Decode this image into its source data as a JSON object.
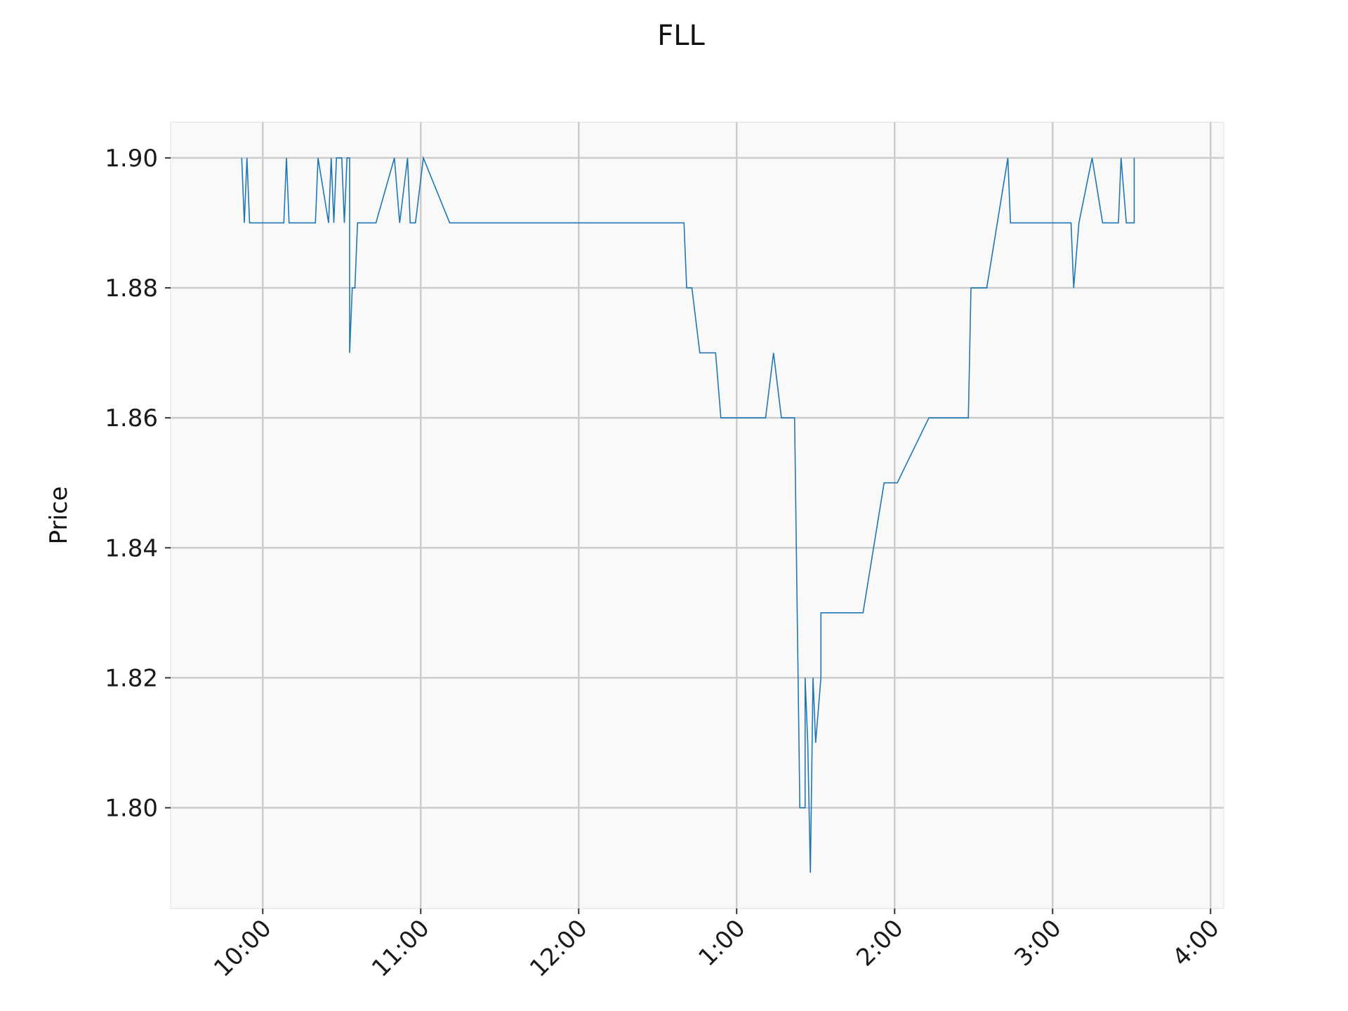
{
  "chart_data": {
    "type": "line",
    "title": "FLL",
    "xlabel": "",
    "ylabel": "Price",
    "grid": true,
    "x_tick_labels": [
      "10:00",
      "11:00",
      "12:00",
      "1:00",
      "2:00",
      "3:00",
      "4:00"
    ],
    "x_tick_times": [
      "10:00",
      "11:00",
      "12:00",
      "13:00",
      "14:00",
      "15:00",
      "16:00"
    ],
    "xlim": [
      "09:25",
      "16:05"
    ],
    "y_ticks": [
      1.8,
      1.82,
      1.84,
      1.86,
      1.88,
      1.9
    ],
    "y_tick_labels": [
      "1.80",
      "1.82",
      "1.84",
      "1.86",
      "1.88",
      "1.90"
    ],
    "ylim": [
      1.7845,
      1.9055
    ],
    "colors": {
      "line": "#1f77b4",
      "plot_bg": "#f9f9f9",
      "grid": "#cccccc"
    },
    "series": [
      {
        "name": "",
        "points": [
          [
            "09:52",
            1.9
          ],
          [
            "09:53",
            1.89
          ],
          [
            "09:54",
            1.9
          ],
          [
            "09:55",
            1.89
          ],
          [
            "10:08",
            1.89
          ],
          [
            "10:09",
            1.9
          ],
          [
            "10:10",
            1.89
          ],
          [
            "10:20",
            1.89
          ],
          [
            "10:21",
            1.9
          ],
          [
            "10:25",
            1.89
          ],
          [
            "10:26",
            1.9
          ],
          [
            "10:27",
            1.89
          ],
          [
            "10:28",
            1.9
          ],
          [
            "10:30",
            1.9
          ],
          [
            "10:31",
            1.89
          ],
          [
            "10:32",
            1.9
          ],
          [
            "10:33",
            1.9
          ],
          [
            "10:33",
            1.87
          ],
          [
            "10:34",
            1.88
          ],
          [
            "10:35",
            1.88
          ],
          [
            "10:36",
            1.89
          ],
          [
            "10:43",
            1.89
          ],
          [
            "10:50",
            1.9
          ],
          [
            "10:52",
            1.89
          ],
          [
            "10:55",
            1.9
          ],
          [
            "10:56",
            1.89
          ],
          [
            "10:58",
            1.89
          ],
          [
            "11:01",
            1.9
          ],
          [
            "11:11",
            1.89
          ],
          [
            "12:40",
            1.89
          ],
          [
            "12:41",
            1.88
          ],
          [
            "12:43",
            1.88
          ],
          [
            "12:46",
            1.87
          ],
          [
            "12:52",
            1.87
          ],
          [
            "12:54",
            1.86
          ],
          [
            "13:11",
            1.86
          ],
          [
            "13:14",
            1.87
          ],
          [
            "13:17",
            1.86
          ],
          [
            "13:22",
            1.86
          ],
          [
            "13:23",
            1.83
          ],
          [
            "13:24",
            1.8
          ],
          [
            "13:26",
            1.8
          ],
          [
            "13:26",
            1.82
          ],
          [
            "13:27",
            1.81
          ],
          [
            "13:28",
            1.79
          ],
          [
            "13:29",
            1.82
          ],
          [
            "13:30",
            1.81
          ],
          [
            "13:32",
            1.82
          ],
          [
            "13:32",
            1.83
          ],
          [
            "13:48",
            1.83
          ],
          [
            "13:52",
            1.84
          ],
          [
            "13:56",
            1.85
          ],
          [
            "14:01",
            1.85
          ],
          [
            "14:13",
            1.86
          ],
          [
            "14:28",
            1.86
          ],
          [
            "14:29",
            1.88
          ],
          [
            "14:35",
            1.88
          ],
          [
            "14:43",
            1.9
          ],
          [
            "14:44",
            1.89
          ],
          [
            "15:07",
            1.89
          ],
          [
            "15:08",
            1.88
          ],
          [
            "15:10",
            1.89
          ],
          [
            "15:15",
            1.9
          ],
          [
            "15:19",
            1.89
          ],
          [
            "15:25",
            1.89
          ],
          [
            "15:26",
            1.9
          ],
          [
            "15:28",
            1.89
          ],
          [
            "15:31",
            1.89
          ],
          [
            "15:31",
            1.9
          ]
        ]
      }
    ]
  }
}
